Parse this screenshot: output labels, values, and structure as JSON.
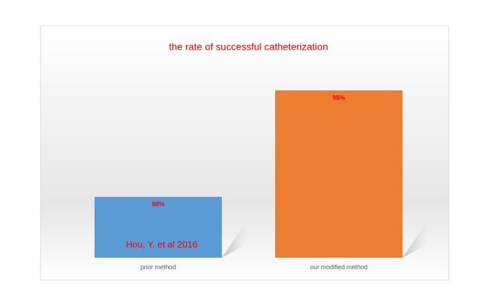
{
  "chart_data": {
    "type": "bar",
    "title": "the rate of successful catheterization",
    "categories": [
      "prior method",
      "our modified method"
    ],
    "series": [
      {
        "name": null,
        "colors": [
          "#5b9bd5",
          "#ed7d31"
        ],
        "values": [
          88,
          95
        ],
        "value_labels": [
          "88%",
          "95%"
        ]
      }
    ],
    "annotation": "Hou, Y. et al 2016",
    "ylim": [
      84,
      98
    ]
  }
}
